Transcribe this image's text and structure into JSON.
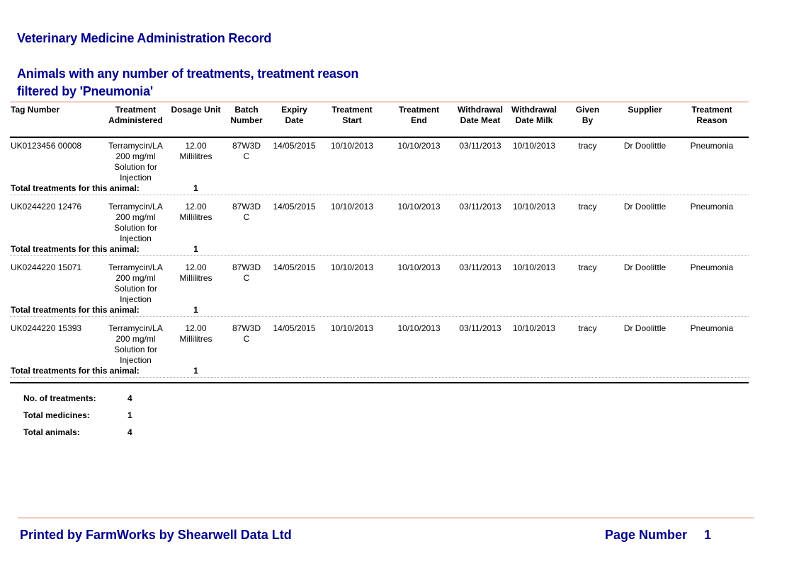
{
  "colors": {
    "accent_navy": "#00008B",
    "separator_pink": "#F7CBC3"
  },
  "header": {
    "title": "Veterinary Medicine Administration Record",
    "subtitle": "Animals with any number of treatments, treatment reason\nfiltered by 'Pneumonia'"
  },
  "table": {
    "columns": [
      "Tag Number",
      "Treatment\nAdministered",
      "Dosage Unit",
      "Batch\nNumber",
      "Expiry\nDate",
      "Treatment\nStart",
      "Treatment\nEnd",
      "Withdrawal\nDate Meat",
      "Withdrawal\nDate Milk",
      "Given\nBy",
      "Supplier",
      "Treatment\nReason"
    ],
    "rows": [
      {
        "tag_number": "UK0123456 00008",
        "treatment_administered": "Terramycin/LA\n200 mg/ml\nSolution for\nInjection",
        "dosage_unit": "12.00 Millilitres",
        "batch_number": "87W3D\nC",
        "expiry_date": "14/05/2015",
        "treatment_start": "10/10/2013",
        "treatment_end": "10/10/2013",
        "withdrawal_date_meat": "03/11/2013",
        "withdrawal_date_milk": "10/10/2013",
        "given_by": "tracy",
        "supplier": "Dr Doolittle",
        "treatment_reason": "Pneumonia",
        "total_label": "Total treatments for this animal:",
        "total_value": "1"
      },
      {
        "tag_number": "UK0244220 12476",
        "treatment_administered": "Terramycin/LA\n200 mg/ml\nSolution for\nInjection",
        "dosage_unit": "12.00 Millilitres",
        "batch_number": "87W3D\nC",
        "expiry_date": "14/05/2015",
        "treatment_start": "10/10/2013",
        "treatment_end": "10/10/2013",
        "withdrawal_date_meat": "03/11/2013",
        "withdrawal_date_milk": "10/10/2013",
        "given_by": "tracy",
        "supplier": "Dr Doolittle",
        "treatment_reason": "Pneumonia",
        "total_label": "Total treatments for this animal:",
        "total_value": "1"
      },
      {
        "tag_number": "UK0244220 15071",
        "treatment_administered": "Terramycin/LA\n200 mg/ml\nSolution for\nInjection",
        "dosage_unit": "12.00 Millilitres",
        "batch_number": "87W3D\nC",
        "expiry_date": "14/05/2015",
        "treatment_start": "10/10/2013",
        "treatment_end": "10/10/2013",
        "withdrawal_date_meat": "03/11/2013",
        "withdrawal_date_milk": "10/10/2013",
        "given_by": "tracy",
        "supplier": "Dr Doolittle",
        "treatment_reason": "Pneumonia",
        "total_label": "Total treatments for this animal:",
        "total_value": "1"
      },
      {
        "tag_number": "UK0244220 15393",
        "treatment_administered": "Terramycin/LA\n200 mg/ml\nSolution for\nInjection",
        "dosage_unit": "12.00 Millilitres",
        "batch_number": "87W3D\nC",
        "expiry_date": "14/05/2015",
        "treatment_start": "10/10/2013",
        "treatment_end": "10/10/2013",
        "withdrawal_date_meat": "03/11/2013",
        "withdrawal_date_milk": "10/10/2013",
        "given_by": "tracy",
        "supplier": "Dr Doolittle",
        "treatment_reason": "Pneumonia",
        "total_label": "Total treatments for this animal:",
        "total_value": "1"
      }
    ]
  },
  "summary": {
    "rows": [
      {
        "label": "No. of treatments:",
        "value": "4"
      },
      {
        "label": "Total medicines:",
        "value": "1"
      },
      {
        "label": "Total animals:",
        "value": "4"
      }
    ]
  },
  "footer": {
    "printed_by": "Printed by FarmWorks by Shearwell Data Ltd",
    "page_label": "Page Number",
    "page_value": "1"
  }
}
